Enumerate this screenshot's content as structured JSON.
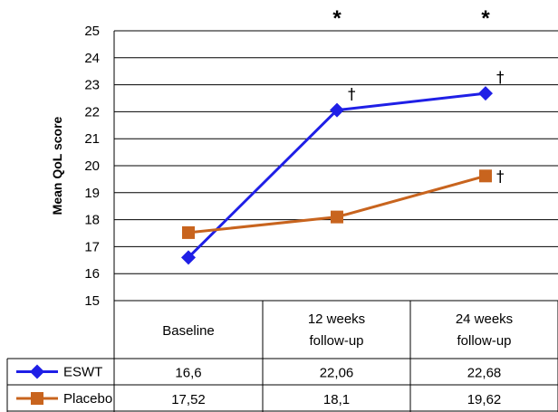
{
  "chart_data": {
    "type": "line",
    "ylabel": "Mean QoL score",
    "ylim": [
      15,
      25
    ],
    "yticks": [
      15,
      16,
      17,
      18,
      19,
      20,
      21,
      22,
      23,
      24,
      25
    ],
    "grid": true,
    "categories": [
      {
        "line1": "Baseline",
        "line2": ""
      },
      {
        "line1": "12 weeks",
        "line2": "follow-up"
      },
      {
        "line1": "24 weeks",
        "line2": "follow-up"
      }
    ],
    "series": [
      {
        "name": "ESWT",
        "color": "#1f1fe6",
        "marker": "diamond",
        "values": [
          16.6,
          22.06,
          22.68
        ],
        "value_labels": [
          "16,6",
          "22,06",
          "22,68"
        ],
        "marks": [
          "",
          "†",
          "†"
        ]
      },
      {
        "name": "Placebo",
        "color": "#c8641e",
        "marker": "square",
        "values": [
          17.52,
          18.1,
          19.62
        ],
        "value_labels": [
          "17,52",
          "18,1",
          "19,62"
        ],
        "marks": [
          "",
          "",
          "†"
        ]
      }
    ],
    "significance": [
      "",
      "*",
      "*"
    ]
  }
}
